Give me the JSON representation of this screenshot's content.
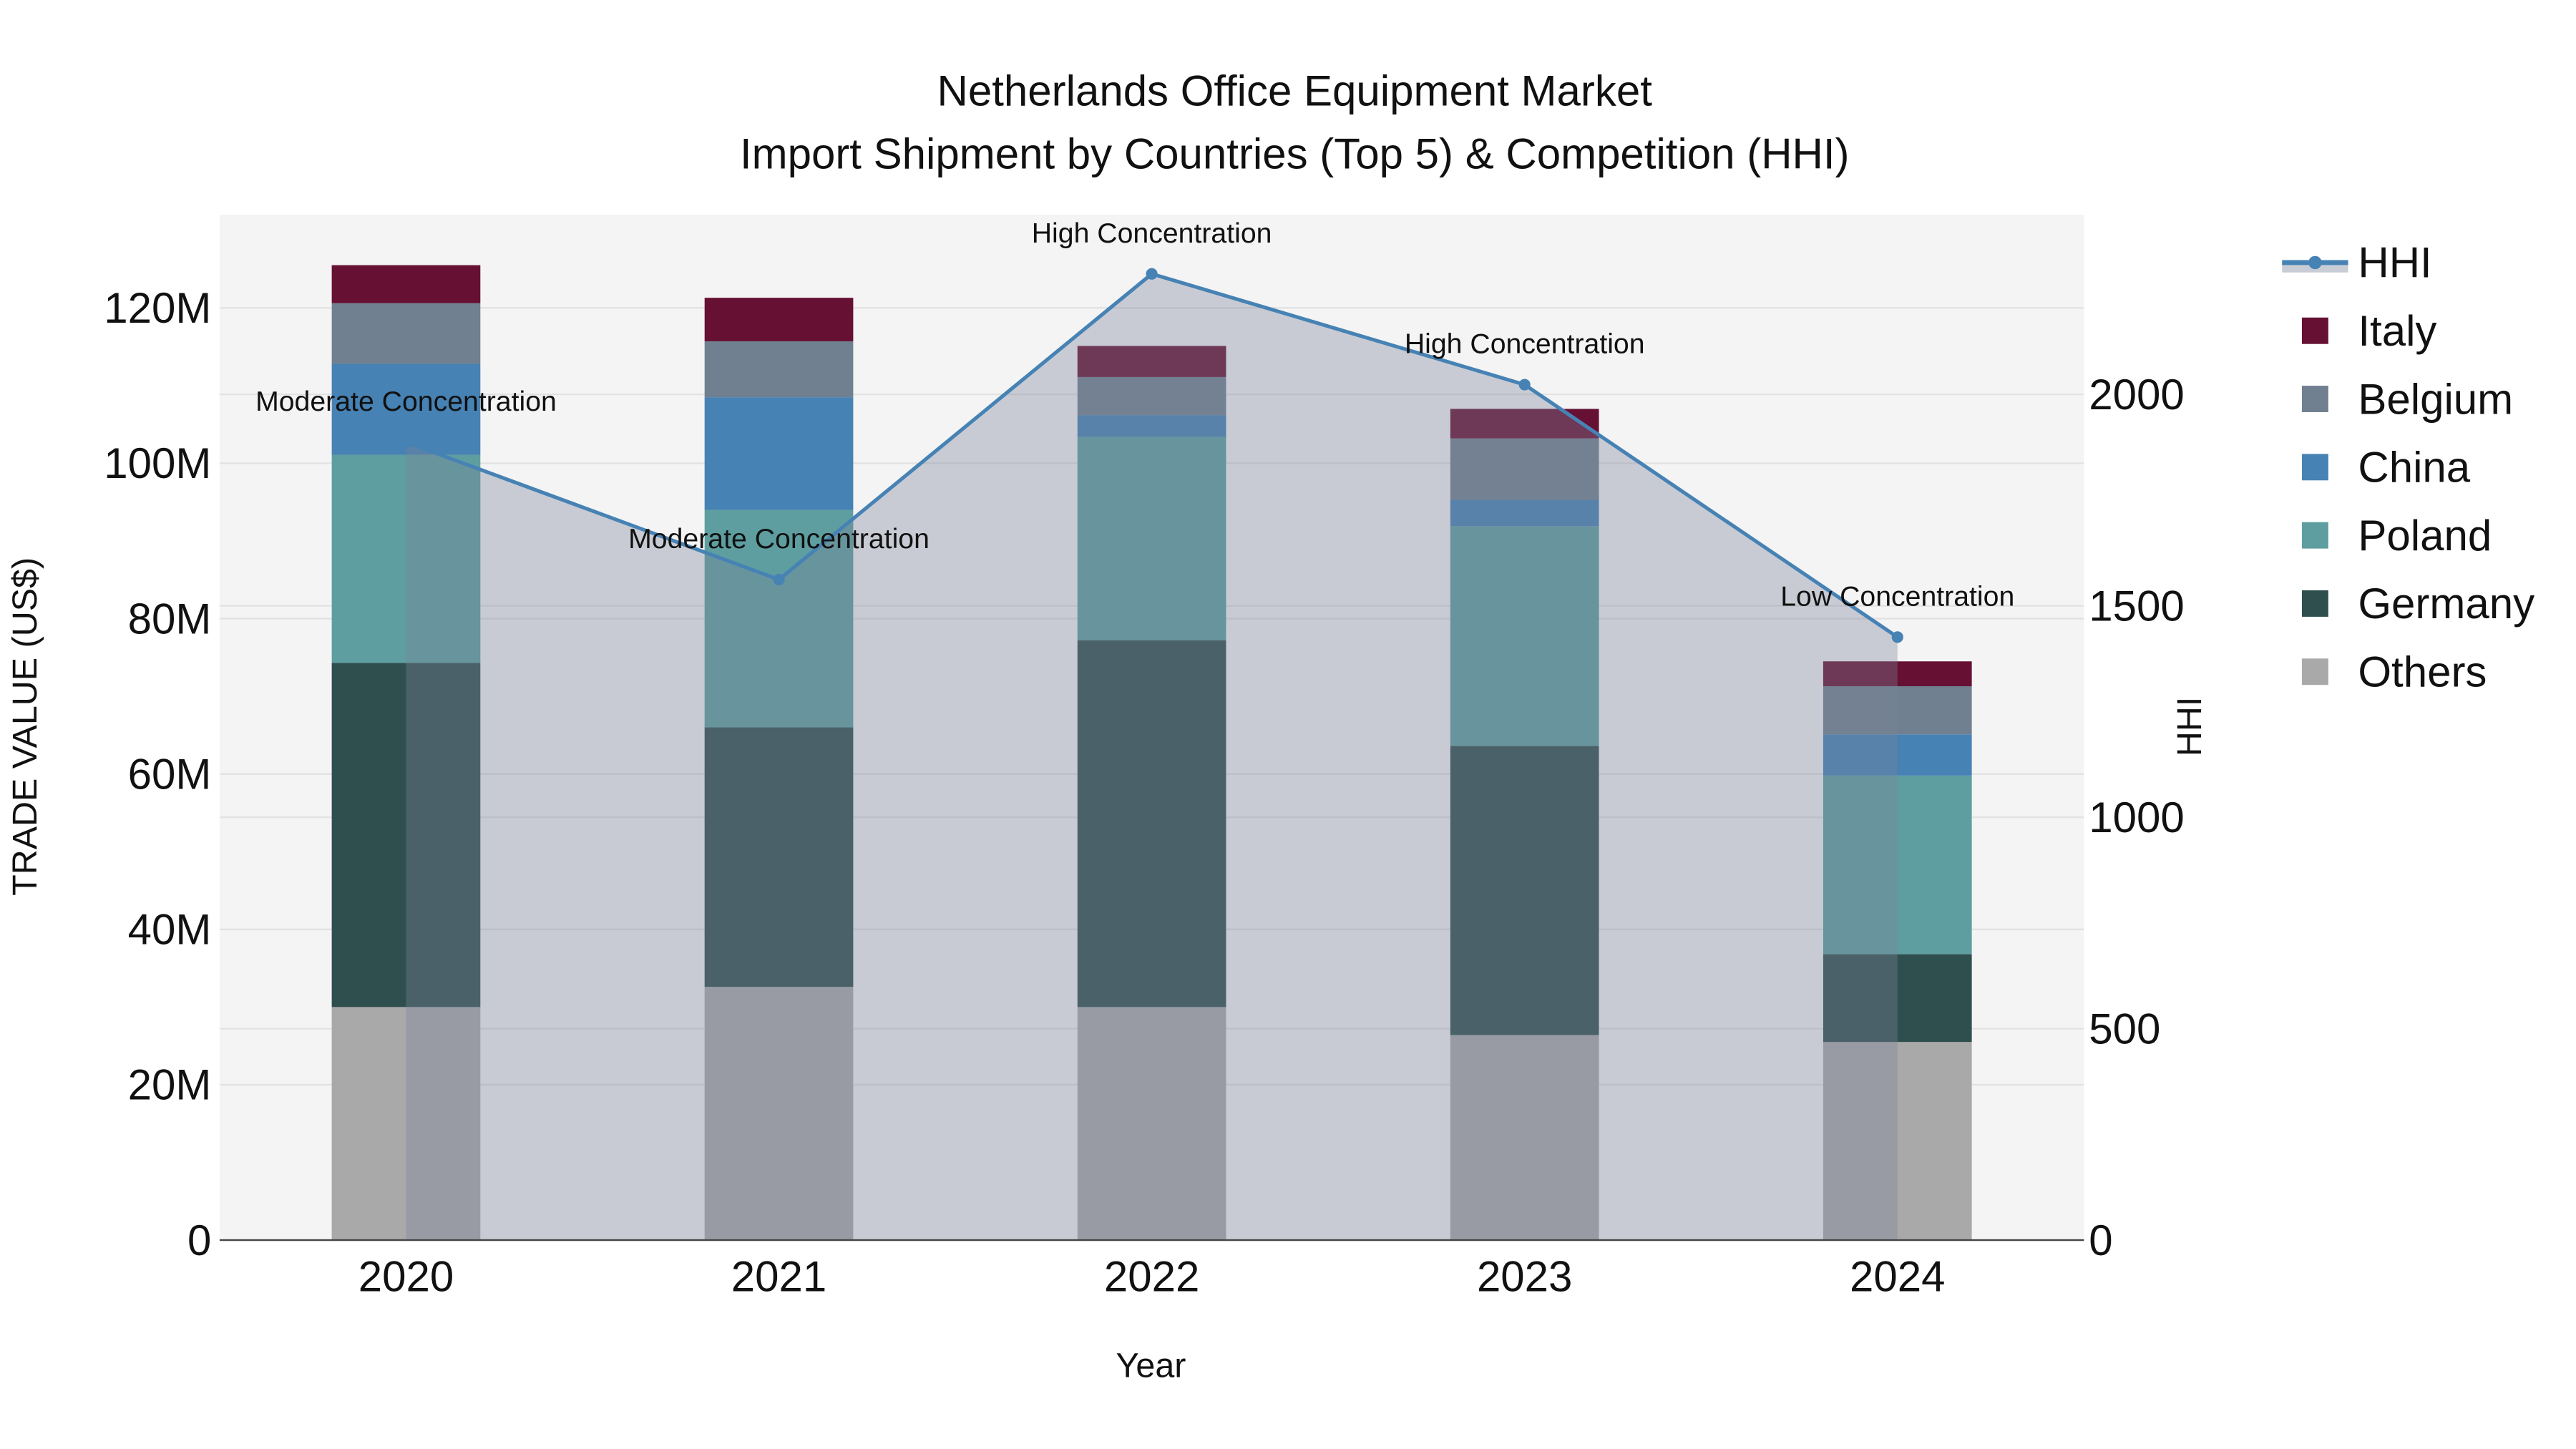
{
  "chart_data": {
    "type": "bar",
    "stacked": true,
    "title": "Netherlands Office Equipment Market",
    "subtitle": "Import Shipment by Countries (Top 5) & Competition (HHI)",
    "xlabel": "Year",
    "ylabel": "TRADE VALUE (US$)",
    "y2label": "HHI",
    "categories": [
      "2020",
      "2021",
      "2022",
      "2023",
      "2024"
    ],
    "ylim": [
      0,
      132000000
    ],
    "y2lim": [
      0,
      2425
    ],
    "yticks": [
      0,
      20000000,
      40000000,
      60000000,
      80000000,
      100000000,
      120000000
    ],
    "yticklabels": [
      "0",
      "20M",
      "40M",
      "60M",
      "80M",
      "100M",
      "120M"
    ],
    "y2ticks": [
      0,
      500,
      1000,
      1500,
      2000
    ],
    "y2ticklabels": [
      "0",
      "500",
      "1000",
      "1500",
      "2000"
    ],
    "legend_position": "right",
    "grid": true,
    "series": [
      {
        "name": "Others",
        "color": "#a9a9a9",
        "values": [
          30.0,
          32.6,
          30.0,
          26.4,
          25.5
        ]
      },
      {
        "name": "Germany",
        "color": "#2f4f4f",
        "values": [
          44.3,
          33.4,
          47.2,
          37.2,
          11.3
        ]
      },
      {
        "name": "Poland",
        "color": "#5f9ea0",
        "values": [
          26.8,
          28.0,
          26.2,
          28.3,
          23.0
        ]
      },
      {
        "name": "China",
        "color": "#4682b4",
        "values": [
          11.7,
          14.5,
          2.8,
          3.4,
          5.3
        ]
      },
      {
        "name": "Belgium",
        "color": "#708090",
        "values": [
          7.8,
          7.2,
          4.9,
          7.9,
          6.2
        ]
      },
      {
        "name": "Italy",
        "color": "#661133",
        "values": [
          4.9,
          5.6,
          4.0,
          3.8,
          3.2
        ]
      }
    ],
    "value_unit": "million US$",
    "hhi": {
      "name": "HHI",
      "color": "#4682b4",
      "values": [
        1887,
        1562,
        2285,
        2023,
        1426
      ],
      "annotations": [
        "Moderate Concentration",
        "Moderate Concentration",
        "High Concentration",
        "High Concentration",
        "Low Concentration"
      ]
    },
    "legend": [
      "HHI",
      "Italy",
      "Belgium",
      "China",
      "Poland",
      "Germany",
      "Others"
    ]
  }
}
